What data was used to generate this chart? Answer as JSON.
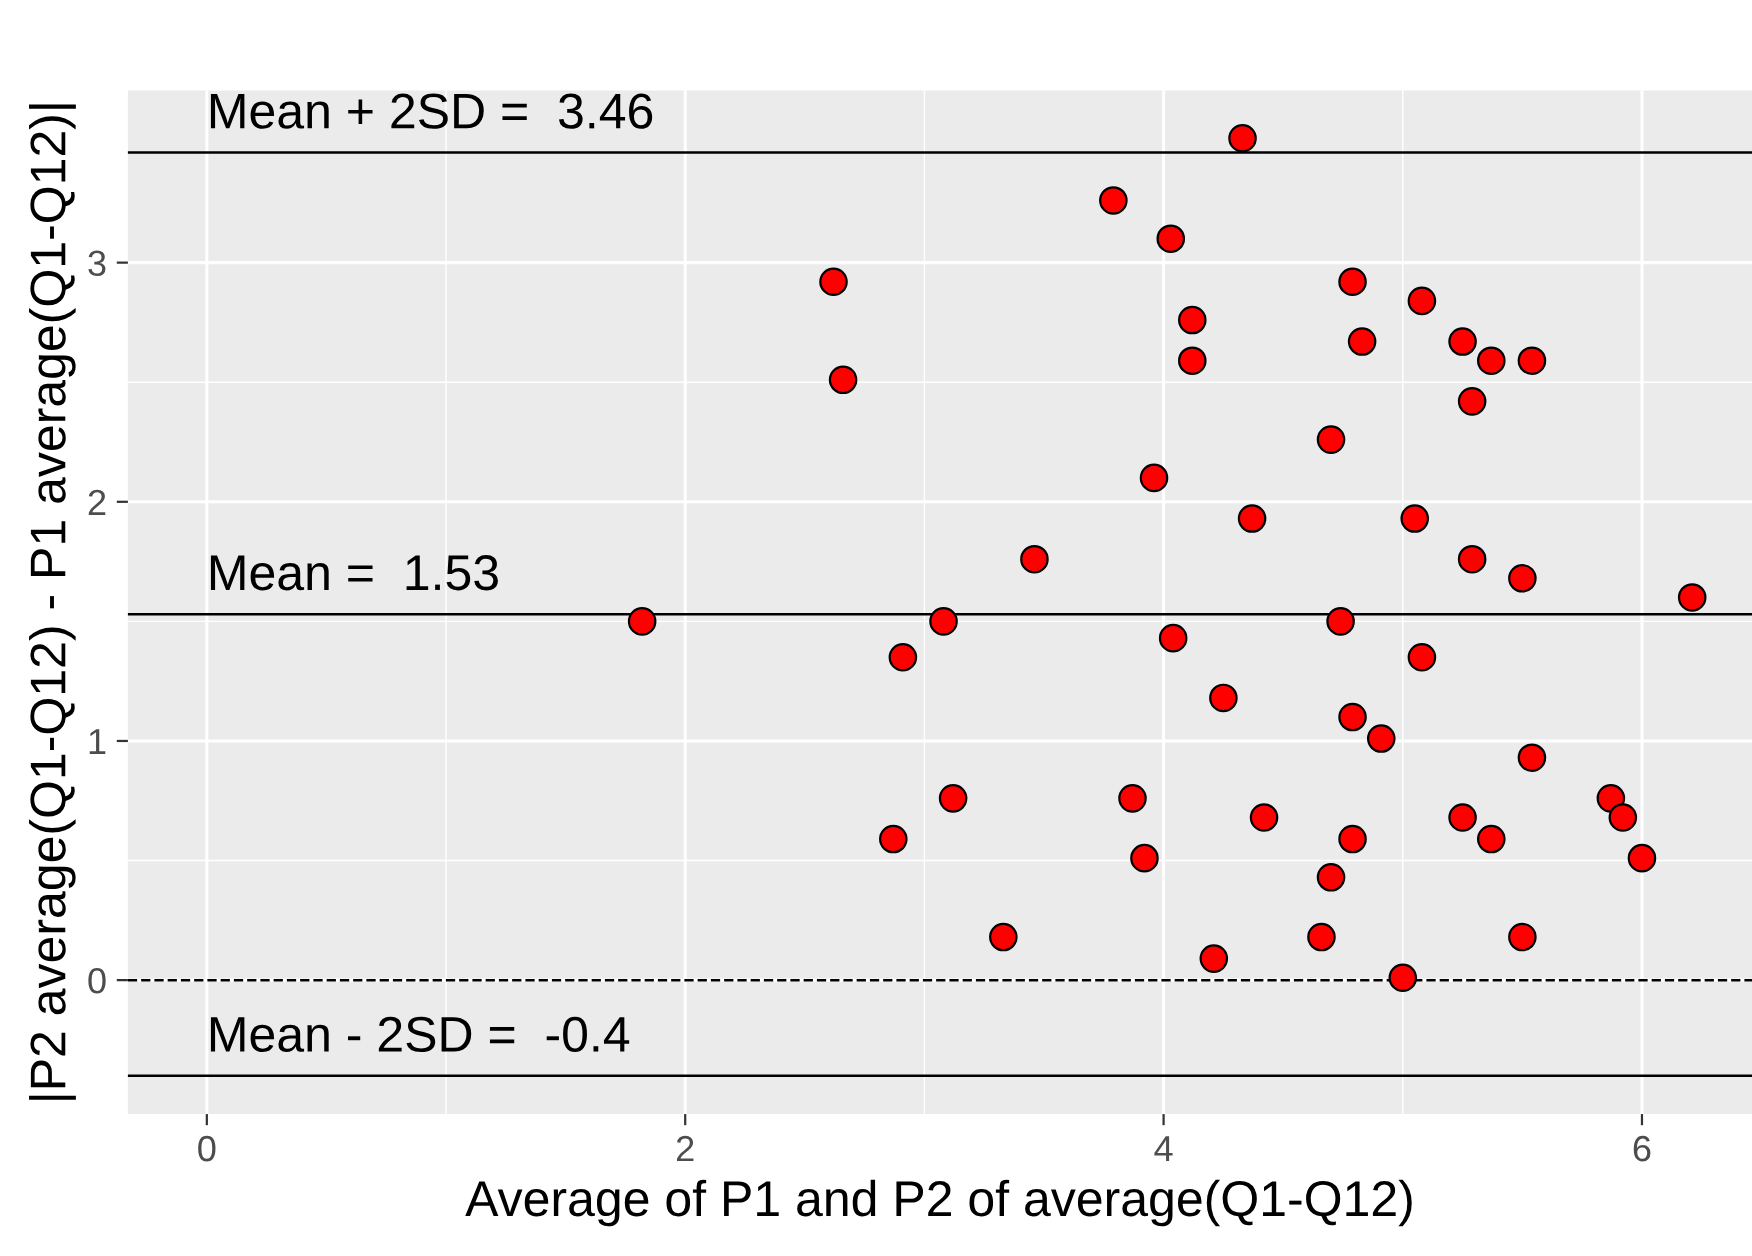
{
  "chart_data": {
    "type": "scatter",
    "xlabel": "Average of P1 and P2 of average(Q1-Q12)",
    "ylabel": "|P2 average(Q1-Q12) - P1 average(Q1-Q12)|",
    "series": [
      {
        "color": "#ff0000",
        "x": [
          4.33,
          3.79,
          4.03,
          2.62,
          4.79,
          5.08,
          4.12,
          5.25,
          4.83,
          5.37,
          5.54,
          4.12,
          2.66,
          5.29,
          4.7,
          3.96,
          4.37,
          5.05,
          3.46,
          5.29,
          5.5,
          6.21,
          1.82,
          3.08,
          4.74,
          4.04,
          2.91,
          5.08,
          4.25,
          4.79,
          4.91,
          5.54,
          3.87,
          3.12,
          5.87,
          5.92,
          4.42,
          5.25,
          2.87,
          4.79,
          5.37,
          3.92,
          6.0,
          4.7,
          3.33,
          4.66,
          5.5,
          4.21,
          5.0
        ],
        "values": [
          3.52,
          3.26,
          3.1,
          2.92,
          2.92,
          2.84,
          2.76,
          2.67,
          2.67,
          2.59,
          2.59,
          2.59,
          2.51,
          2.42,
          2.26,
          2.1,
          1.93,
          1.93,
          1.76,
          1.76,
          1.68,
          1.6,
          1.5,
          1.5,
          1.5,
          1.43,
          1.35,
          1.35,
          1.18,
          1.1,
          1.01,
          0.93,
          0.76,
          0.76,
          0.76,
          0.68,
          0.68,
          0.68,
          0.59,
          0.59,
          0.59,
          0.51,
          0.51,
          0.43,
          0.18,
          0.18,
          0.18,
          0.09,
          0.01
        ]
      }
    ],
    "marker": "circle",
    "xlim": [
      -0.33,
      6.46
    ],
    "ylim": [
      -0.56,
      3.72
    ],
    "xticks": [
      0,
      2,
      4,
      6
    ],
    "yticks": [
      0,
      1,
      2,
      3
    ],
    "grid": true,
    "legend": false,
    "ref_lines": [
      {
        "axis": "y",
        "value": 3.46,
        "label": "Mean + 2SD =  3.46",
        "color": "#000000",
        "line_style": "solid"
      },
      {
        "axis": "y",
        "value": 1.53,
        "label": "Mean =  1.53",
        "color": "#000000",
        "line_style": "solid"
      },
      {
        "axis": "y",
        "value": 0,
        "color": "#000000",
        "line_style": "dashed"
      },
      {
        "axis": "y",
        "value": -0.4,
        "label": "Mean - 2SD =  -0.4",
        "color": "#000000",
        "line_style": "solid"
      }
    ]
  }
}
